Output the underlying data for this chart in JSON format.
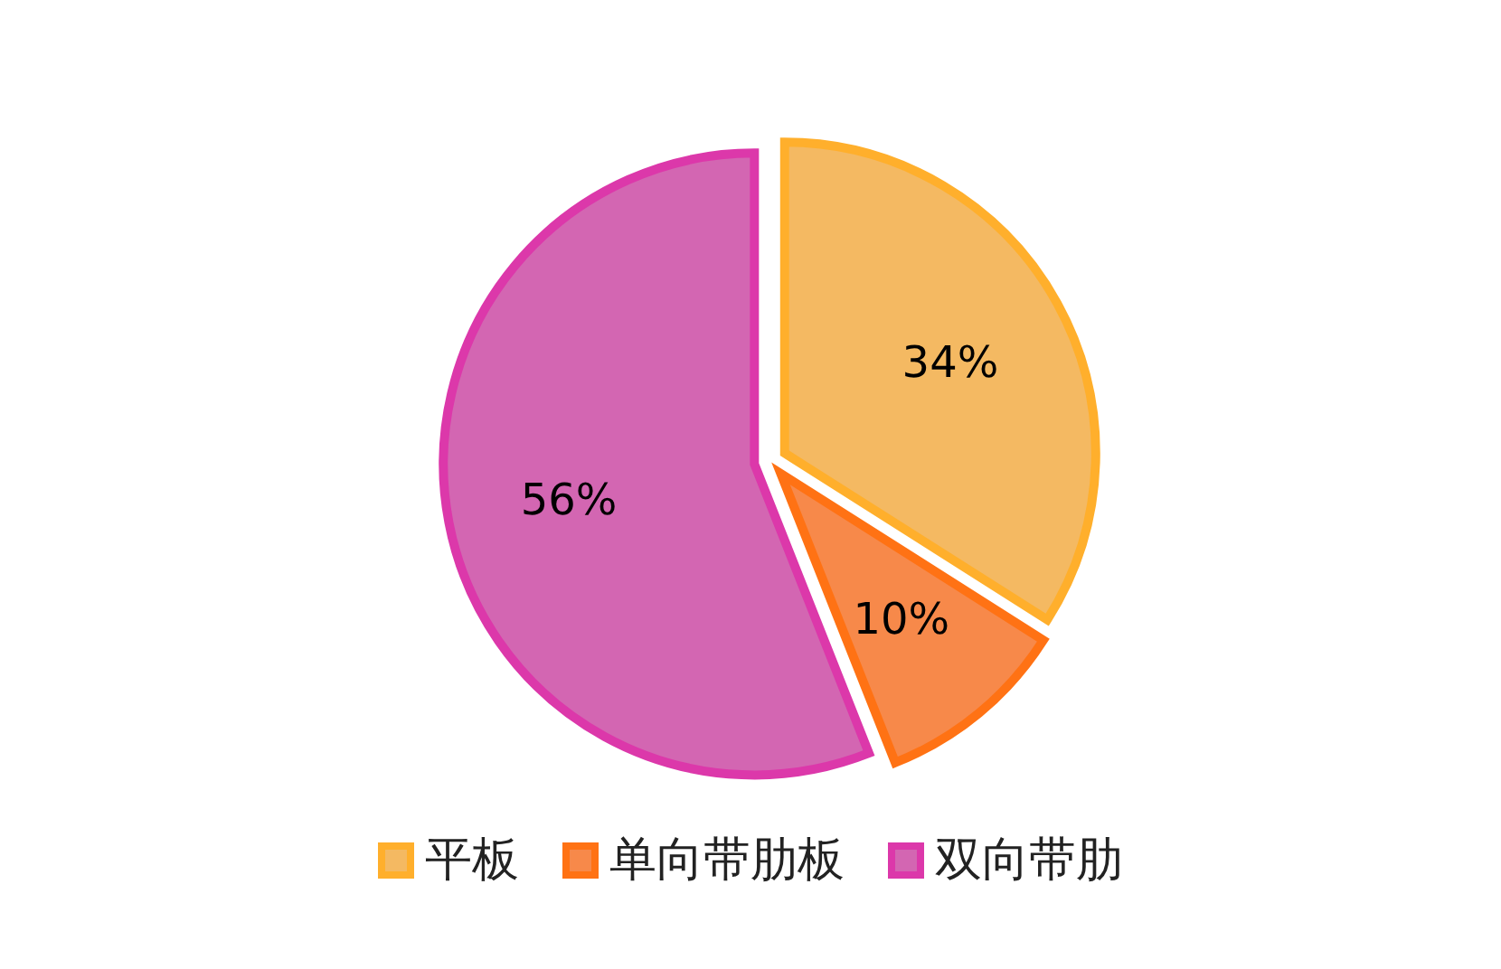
{
  "chart_data": {
    "type": "pie",
    "categories": [
      "平板",
      "单向带肋板",
      "双向带肋"
    ],
    "values": [
      34,
      10,
      56
    ],
    "colors": [
      "#f4b962",
      "#f7894a",
      "#d366b2"
    ],
    "legend": "bottom",
    "value_labels": [
      "34%",
      "10%",
      "56%"
    ]
  }
}
